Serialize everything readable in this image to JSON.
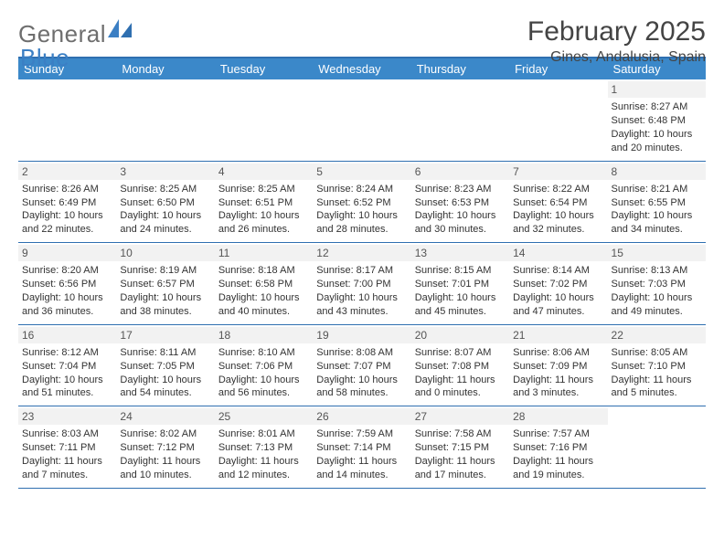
{
  "logo": {
    "word1": "General",
    "word2": "Blue"
  },
  "title": "February 2025",
  "location": "Gines, Andalusia, Spain",
  "colors": {
    "accent": "#3b88c9",
    "rule": "#2f6fb0",
    "daynum_bg": "#f2f2f2",
    "text": "#333333",
    "logo_gray": "#6e6e6e",
    "logo_blue": "#3b7fc4"
  },
  "days_of_week": [
    "Sunday",
    "Monday",
    "Tuesday",
    "Wednesday",
    "Thursday",
    "Friday",
    "Saturday"
  ],
  "weeks": [
    [
      {
        "blank": true
      },
      {
        "blank": true
      },
      {
        "blank": true
      },
      {
        "blank": true
      },
      {
        "blank": true
      },
      {
        "blank": true
      },
      {
        "n": "1",
        "sunrise": "Sunrise: 8:27 AM",
        "sunset": "Sunset: 6:48 PM",
        "day1": "Daylight: 10 hours",
        "day2": "and 20 minutes."
      }
    ],
    [
      {
        "n": "2",
        "sunrise": "Sunrise: 8:26 AM",
        "sunset": "Sunset: 6:49 PM",
        "day1": "Daylight: 10 hours",
        "day2": "and 22 minutes."
      },
      {
        "n": "3",
        "sunrise": "Sunrise: 8:25 AM",
        "sunset": "Sunset: 6:50 PM",
        "day1": "Daylight: 10 hours",
        "day2": "and 24 minutes."
      },
      {
        "n": "4",
        "sunrise": "Sunrise: 8:25 AM",
        "sunset": "Sunset: 6:51 PM",
        "day1": "Daylight: 10 hours",
        "day2": "and 26 minutes."
      },
      {
        "n": "5",
        "sunrise": "Sunrise: 8:24 AM",
        "sunset": "Sunset: 6:52 PM",
        "day1": "Daylight: 10 hours",
        "day2": "and 28 minutes."
      },
      {
        "n": "6",
        "sunrise": "Sunrise: 8:23 AM",
        "sunset": "Sunset: 6:53 PM",
        "day1": "Daylight: 10 hours",
        "day2": "and 30 minutes."
      },
      {
        "n": "7",
        "sunrise": "Sunrise: 8:22 AM",
        "sunset": "Sunset: 6:54 PM",
        "day1": "Daylight: 10 hours",
        "day2": "and 32 minutes."
      },
      {
        "n": "8",
        "sunrise": "Sunrise: 8:21 AM",
        "sunset": "Sunset: 6:55 PM",
        "day1": "Daylight: 10 hours",
        "day2": "and 34 minutes."
      }
    ],
    [
      {
        "n": "9",
        "sunrise": "Sunrise: 8:20 AM",
        "sunset": "Sunset: 6:56 PM",
        "day1": "Daylight: 10 hours",
        "day2": "and 36 minutes."
      },
      {
        "n": "10",
        "sunrise": "Sunrise: 8:19 AM",
        "sunset": "Sunset: 6:57 PM",
        "day1": "Daylight: 10 hours",
        "day2": "and 38 minutes."
      },
      {
        "n": "11",
        "sunrise": "Sunrise: 8:18 AM",
        "sunset": "Sunset: 6:58 PM",
        "day1": "Daylight: 10 hours",
        "day2": "and 40 minutes."
      },
      {
        "n": "12",
        "sunrise": "Sunrise: 8:17 AM",
        "sunset": "Sunset: 7:00 PM",
        "day1": "Daylight: 10 hours",
        "day2": "and 43 minutes."
      },
      {
        "n": "13",
        "sunrise": "Sunrise: 8:15 AM",
        "sunset": "Sunset: 7:01 PM",
        "day1": "Daylight: 10 hours",
        "day2": "and 45 minutes."
      },
      {
        "n": "14",
        "sunrise": "Sunrise: 8:14 AM",
        "sunset": "Sunset: 7:02 PM",
        "day1": "Daylight: 10 hours",
        "day2": "and 47 minutes."
      },
      {
        "n": "15",
        "sunrise": "Sunrise: 8:13 AM",
        "sunset": "Sunset: 7:03 PM",
        "day1": "Daylight: 10 hours",
        "day2": "and 49 minutes."
      }
    ],
    [
      {
        "n": "16",
        "sunrise": "Sunrise: 8:12 AM",
        "sunset": "Sunset: 7:04 PM",
        "day1": "Daylight: 10 hours",
        "day2": "and 51 minutes."
      },
      {
        "n": "17",
        "sunrise": "Sunrise: 8:11 AM",
        "sunset": "Sunset: 7:05 PM",
        "day1": "Daylight: 10 hours",
        "day2": "and 54 minutes."
      },
      {
        "n": "18",
        "sunrise": "Sunrise: 8:10 AM",
        "sunset": "Sunset: 7:06 PM",
        "day1": "Daylight: 10 hours",
        "day2": "and 56 minutes."
      },
      {
        "n": "19",
        "sunrise": "Sunrise: 8:08 AM",
        "sunset": "Sunset: 7:07 PM",
        "day1": "Daylight: 10 hours",
        "day2": "and 58 minutes."
      },
      {
        "n": "20",
        "sunrise": "Sunrise: 8:07 AM",
        "sunset": "Sunset: 7:08 PM",
        "day1": "Daylight: 11 hours",
        "day2": "and 0 minutes."
      },
      {
        "n": "21",
        "sunrise": "Sunrise: 8:06 AM",
        "sunset": "Sunset: 7:09 PM",
        "day1": "Daylight: 11 hours",
        "day2": "and 3 minutes."
      },
      {
        "n": "22",
        "sunrise": "Sunrise: 8:05 AM",
        "sunset": "Sunset: 7:10 PM",
        "day1": "Daylight: 11 hours",
        "day2": "and 5 minutes."
      }
    ],
    [
      {
        "n": "23",
        "sunrise": "Sunrise: 8:03 AM",
        "sunset": "Sunset: 7:11 PM",
        "day1": "Daylight: 11 hours",
        "day2": "and 7 minutes."
      },
      {
        "n": "24",
        "sunrise": "Sunrise: 8:02 AM",
        "sunset": "Sunset: 7:12 PM",
        "day1": "Daylight: 11 hours",
        "day2": "and 10 minutes."
      },
      {
        "n": "25",
        "sunrise": "Sunrise: 8:01 AM",
        "sunset": "Sunset: 7:13 PM",
        "day1": "Daylight: 11 hours",
        "day2": "and 12 minutes."
      },
      {
        "n": "26",
        "sunrise": "Sunrise: 7:59 AM",
        "sunset": "Sunset: 7:14 PM",
        "day1": "Daylight: 11 hours",
        "day2": "and 14 minutes."
      },
      {
        "n": "27",
        "sunrise": "Sunrise: 7:58 AM",
        "sunset": "Sunset: 7:15 PM",
        "day1": "Daylight: 11 hours",
        "day2": "and 17 minutes."
      },
      {
        "n": "28",
        "sunrise": "Sunrise: 7:57 AM",
        "sunset": "Sunset: 7:16 PM",
        "day1": "Daylight: 11 hours",
        "day2": "and 19 minutes."
      },
      {
        "blank": true
      }
    ]
  ]
}
